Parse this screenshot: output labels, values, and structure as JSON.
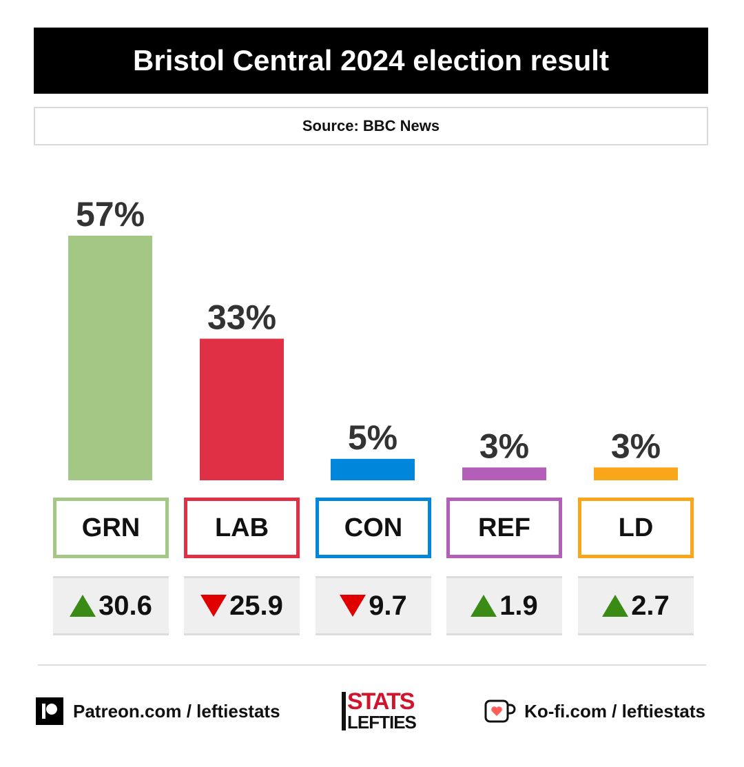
{
  "header": {
    "title": "Bristol Central 2024 election result",
    "source": "Source: BBC News"
  },
  "chart_data": {
    "type": "bar",
    "title": "Bristol Central 2024 election result",
    "categories": [
      "GRN",
      "LAB",
      "CON",
      "REF",
      "LD"
    ],
    "values": [
      57,
      33,
      5,
      3,
      3
    ],
    "value_labels": [
      "57%",
      "33%",
      "5%",
      "3%",
      "3%"
    ],
    "colors": [
      "#a3c886",
      "#e03045",
      "#0087dc",
      "#b35eb8",
      "#faa61a"
    ],
    "changes": [
      {
        "direction": "up",
        "value": "30.6"
      },
      {
        "direction": "down",
        "value": "25.9"
      },
      {
        "direction": "down",
        "value": "9.7"
      },
      {
        "direction": "up",
        "value": "1.9"
      },
      {
        "direction": "up",
        "value": "2.7"
      }
    ],
    "ylim": [
      0,
      57
    ],
    "grid": false,
    "legend": "none"
  },
  "footer": {
    "patreon": "Patreon.com / leftiestats",
    "kofi": "Ko-fi.com / leftiestats",
    "logo_top": "STATS",
    "logo_bottom": "LEFTIES"
  }
}
